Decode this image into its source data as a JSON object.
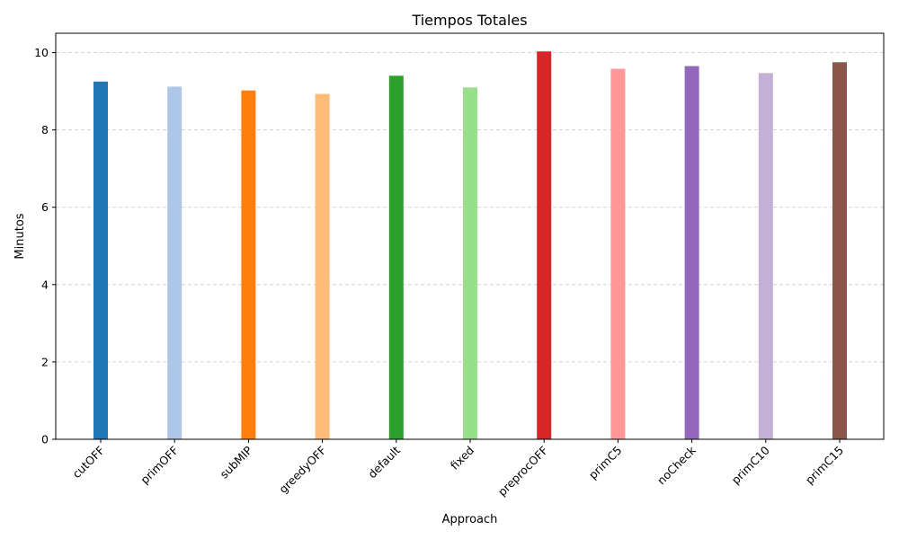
{
  "chart_data": {
    "type": "bar",
    "title": "Tiempos Totales",
    "xlabel": "Approach",
    "ylabel": "Minutos",
    "ylim": [
      0,
      10.5
    ],
    "yticks": [
      0,
      2,
      4,
      6,
      8,
      10
    ],
    "grid": "y-dashed",
    "categories": [
      "cutOFF",
      "primOFF",
      "subMIP",
      "greedyOFF",
      "default",
      "fixed",
      "preprocOFF",
      "primC5",
      "noCheck",
      "primC10",
      "primC15"
    ],
    "values": [
      9.25,
      9.12,
      9.02,
      8.93,
      9.4,
      9.1,
      10.03,
      9.58,
      9.65,
      9.47,
      9.75
    ],
    "colors": [
      "#1f77b4",
      "#aec7e8",
      "#ff7f0e",
      "#ffbb78",
      "#2ca02c",
      "#98df8a",
      "#d62728",
      "#ff9896",
      "#9467bd",
      "#c5b0d5",
      "#8c564b"
    ]
  }
}
